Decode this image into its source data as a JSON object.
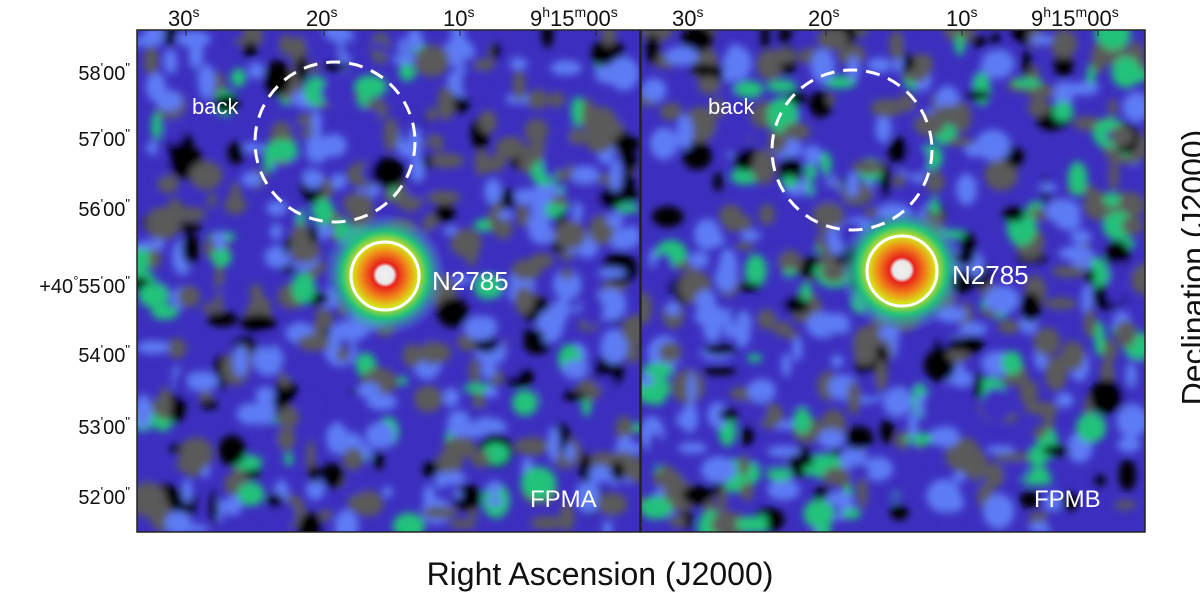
{
  "figure": {
    "x_axis_label": "Right Ascension (J2000)",
    "y_axis_label": "Declination (J2000)",
    "ra_ticks": [
      {
        "main": "30",
        "sup": "s"
      },
      {
        "main": "20",
        "sup": "s"
      },
      {
        "main": "10",
        "sup": "s"
      },
      {
        "main": "9",
        "sup": "h",
        "main2": "15",
        "sup2": "m",
        "main3": "00",
        "sup3": "s"
      }
    ],
    "dec_ticks": [
      {
        "prefix": "",
        "deg": "",
        "min": "58",
        "sec": "00"
      },
      {
        "prefix": "",
        "deg": "",
        "min": "57",
        "sec": "00"
      },
      {
        "prefix": "",
        "deg": "",
        "min": "56",
        "sec": "00"
      },
      {
        "prefix": "+40",
        "deg": "°",
        "min": "55",
        "sec": "00"
      },
      {
        "prefix": "",
        "deg": "",
        "min": "54",
        "sec": "00"
      },
      {
        "prefix": "",
        "deg": "",
        "min": "53",
        "sec": "00"
      },
      {
        "prefix": "",
        "deg": "",
        "min": "52",
        "sec": "00"
      }
    ],
    "panels": [
      {
        "name": "FPMA",
        "background_label": "back",
        "source_label": "N2785"
      },
      {
        "name": "FPMB",
        "background_label": "back",
        "source_label": "N2785"
      }
    ],
    "colormap": [
      "#000000",
      "#5a5a5a",
      "#3c2fbf",
      "#5d7cf4",
      "#22c27a",
      "#d8e21a",
      "#f08a18",
      "#e8231c",
      "#e8e8e8"
    ],
    "region_color": "#ffffff"
  }
}
